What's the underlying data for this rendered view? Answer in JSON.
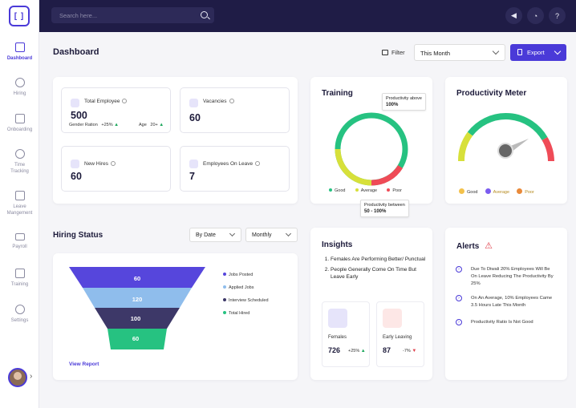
{
  "sidebar": {
    "logo_icon": "bracket-logo-icon",
    "items": [
      {
        "label": "Dashboard",
        "icon": "dashboard-icon",
        "active": true
      },
      {
        "label": "Hiring",
        "icon": "people-icon"
      },
      {
        "label": "Onboarding",
        "icon": "onboarding-icon"
      },
      {
        "label": "Time Tracking",
        "icon": "clock-icon"
      },
      {
        "label": "Leave Mangement",
        "icon": "calendar-icon"
      },
      {
        "label": "Payroll",
        "icon": "card-icon"
      },
      {
        "label": "Training",
        "icon": "training-icon"
      },
      {
        "label": "Settings",
        "icon": "gear-icon"
      }
    ]
  },
  "topbar": {
    "search_placeholder": "Search here..."
  },
  "header": {
    "title": "Dashboard",
    "filter_label": "Filter",
    "period": "This Month",
    "export_label": "Export"
  },
  "stats": {
    "total_employee": {
      "label": "Total Employee",
      "value": "500",
      "gender_label": "Gender Ration",
      "gender_change": "+25%",
      "age_label": "Age",
      "age_value": "20+"
    },
    "vacancies": {
      "label": "Vacancies",
      "value": "60"
    },
    "new_hires": {
      "label": "New Hires",
      "value": "60"
    },
    "on_leave": {
      "label": "Employees On Leave",
      "value": "7"
    }
  },
  "training": {
    "title": "Training",
    "tooltip_top_label": "Productivity above",
    "tooltip_top_value": "100%",
    "tooltip_bottom_label": "Productivity between",
    "tooltip_bottom_value": "50 - 100%",
    "legend": [
      {
        "label": "Good",
        "color": "#26c281"
      },
      {
        "label": "Average",
        "color": "#d7e03a"
      },
      {
        "label": "Poor",
        "color": "#ef4b57"
      }
    ],
    "segments": [
      {
        "label": "Good",
        "fraction": 0.55
      },
      {
        "label": "Average",
        "fraction": 0.3
      },
      {
        "label": "Poor",
        "fraction": 0.15
      }
    ]
  },
  "meter": {
    "title": "Productivity Meter",
    "legend": [
      "Good",
      "Average",
      "Poor"
    ]
  },
  "hiring": {
    "title": "Hiring Status",
    "range_select": "By Date",
    "period_select": "Monthly",
    "funnel": [
      {
        "label": "Jobs Posted",
        "value": "60",
        "color": "#5646dc"
      },
      {
        "label": "Applied Jobs",
        "value": "120",
        "color": "#8fbdec"
      },
      {
        "label": "Interview Scheduled",
        "value": "100",
        "color": "#3d3868"
      },
      {
        "label": "Total Hired",
        "value": "60",
        "color": "#26c281"
      }
    ],
    "view_report": "View Report"
  },
  "insights": {
    "title": "Insights",
    "points": [
      "Females Are Performing Better/ Punctual",
      "People Generally Come On Time But Leave Early"
    ],
    "females": {
      "label": "Females",
      "value": "726",
      "change": "+25%"
    },
    "early_leaving": {
      "label": "Early  Leaving",
      "value": "87",
      "change": "-7%"
    }
  },
  "alerts": {
    "title": "Alerts",
    "items": [
      "Due To Diwali 20% Employees Will Be On Leave Reducing The Productivity By 25%",
      "On An Average, 10% Employees Came 3.5 Hours Late This Month",
      "Productivity Ratio Is Not Good"
    ]
  }
}
